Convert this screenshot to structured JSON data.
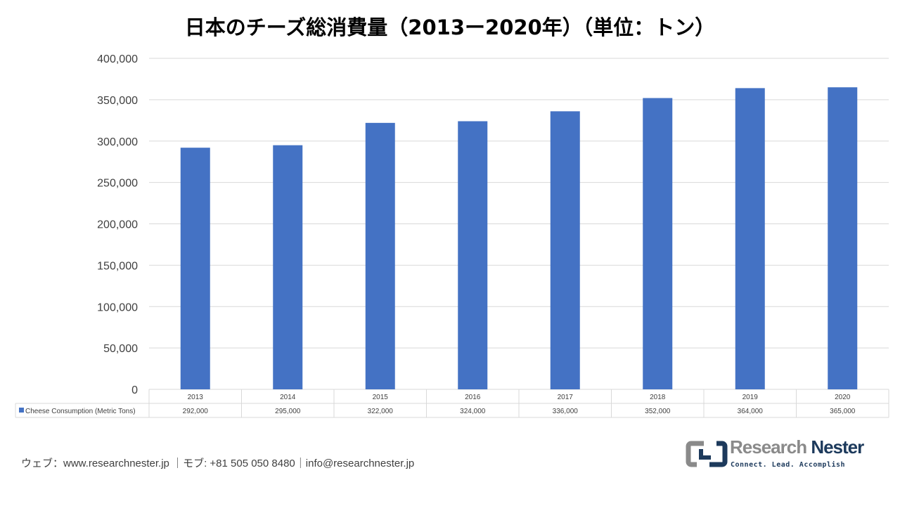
{
  "chart_data": {
    "type": "bar",
    "title": "日本のチーズ総消費量（2013ー2020年）（単位：トン）",
    "categories": [
      "2013",
      "2014",
      "2015",
      "2016",
      "2017",
      "2018",
      "2019",
      "2020"
    ],
    "series": [
      {
        "name": "Cheese Consumption (Metric Tons)",
        "values": [
          292000,
          295000,
          322000,
          324000,
          336000,
          352000,
          364000,
          365000
        ],
        "labels": [
          "292,000",
          "295,000",
          "322,000",
          "324,000",
          "336,000",
          "352,000",
          "364,000",
          "365,000"
        ],
        "color": "#4472C4"
      }
    ],
    "ylim": [
      0,
      400000
    ],
    "yticks": [
      "0",
      "50,000",
      "100,000",
      "150,000",
      "200,000",
      "250,000",
      "300,000",
      "350,000",
      "400,000"
    ],
    "grid": true,
    "legend": "data-table"
  },
  "footer": {
    "text": "ウェブ：www.researchnester.jp ｜モブ: +81 505 050 8480｜info@researchnester.jp"
  },
  "logo": {
    "name1": "Research",
    "name2": "Nester",
    "tagline": "Connect. Lead. Accomplish"
  }
}
